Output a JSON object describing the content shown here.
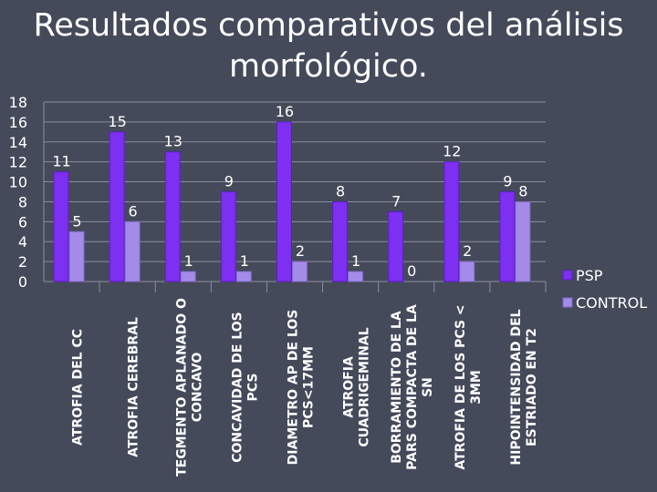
{
  "slide": {
    "title_line1": "Resultados comparativos del análisis",
    "title_line2": "morfológico."
  },
  "colors": {
    "background": "#454a5a",
    "psp": "#7d2ff2",
    "control": "#a58be8",
    "text": "#ffffff"
  },
  "chart_data": {
    "type": "bar",
    "title": "",
    "xlabel": "",
    "ylabel": "",
    "ylim": [
      0,
      18
    ],
    "yticks": [
      0,
      2,
      4,
      6,
      8,
      10,
      12,
      14,
      16,
      18
    ],
    "grid": true,
    "legend_position": "right",
    "categories": [
      [
        "ATROFIA DEL CC"
      ],
      [
        "ATROFIA CEREBRAL"
      ],
      [
        "TEGMENTO APLANADO O",
        "CONCAVO"
      ],
      [
        "CONCAVIDAD DE LOS",
        "PCS"
      ],
      [
        "DIAMETRO AP DE LOS",
        "PCS<17MM"
      ],
      [
        "ATROFIA",
        "CUADRIGEMINAL"
      ],
      [
        "BORRAMIENTO DE LA",
        "PARS COMPACTA DE LA",
        "SN"
      ],
      [
        "ATROFIA DE LOS PCS <",
        "3MM"
      ],
      [
        "HIPOINTENSIDAD DEL",
        "ESTRIADO EN T2"
      ]
    ],
    "series": [
      {
        "name": "PSP",
        "values": [
          11,
          15,
          13,
          9,
          16,
          8,
          7,
          12,
          9
        ]
      },
      {
        "name": "CONTROL",
        "values": [
          5,
          6,
          1,
          1,
          2,
          1,
          0,
          2,
          8
        ]
      }
    ]
  }
}
